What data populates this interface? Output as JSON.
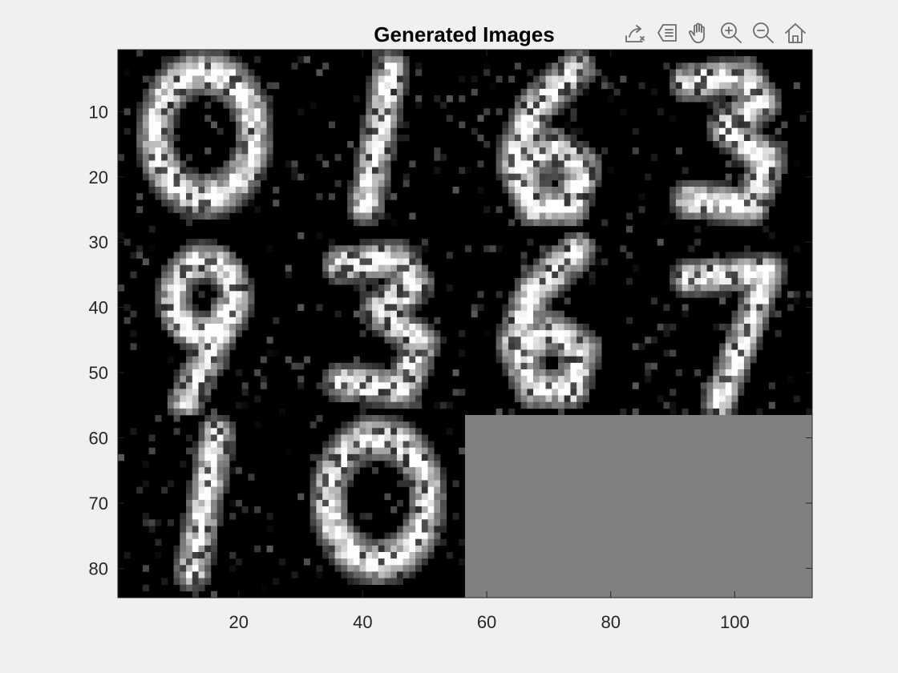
{
  "chart_data": {
    "type": "heatmap",
    "title": "Generated Images",
    "xlabel": "",
    "ylabel": "",
    "colormap": "gray",
    "background_fill_color": "#808080",
    "x_range": [
      0.5,
      112.5
    ],
    "y_range": [
      0.5,
      84.5
    ],
    "y_direction": "reverse",
    "xticks": [
      20,
      40,
      60,
      80,
      100
    ],
    "yticks": [
      10,
      20,
      30,
      40,
      50,
      60,
      70,
      80
    ],
    "xtick_labels": [
      "20",
      "40",
      "60",
      "80",
      "100"
    ],
    "ytick_labels": [
      "10",
      "20",
      "30",
      "40",
      "50",
      "60",
      "70",
      "80"
    ],
    "grid": false,
    "montage": {
      "tile_size": 28,
      "grid_rows": 3,
      "grid_cols": 4,
      "tiles": [
        {
          "row": 0,
          "col": 0,
          "digit": "0"
        },
        {
          "row": 0,
          "col": 1,
          "digit": "1"
        },
        {
          "row": 0,
          "col": 2,
          "digit": "6"
        },
        {
          "row": 0,
          "col": 3,
          "digit": "3"
        },
        {
          "row": 1,
          "col": 0,
          "digit": "9"
        },
        {
          "row": 1,
          "col": 1,
          "digit": "3"
        },
        {
          "row": 1,
          "col": 2,
          "digit": "6"
        },
        {
          "row": 1,
          "col": 3,
          "digit": "7"
        },
        {
          "row": 2,
          "col": 0,
          "digit": "1"
        },
        {
          "row": 2,
          "col": 1,
          "digit": "0"
        }
      ],
      "empty_region_x": [
        56.5,
        112.5
      ],
      "empty_region_y": [
        56.5,
        84.5
      ],
      "empty_region_value": 0.5
    }
  },
  "toolbar": {
    "items": [
      {
        "name": "export-icon"
      },
      {
        "name": "data-tips-icon"
      },
      {
        "name": "pan-hand-icon"
      },
      {
        "name": "zoom-in-icon"
      },
      {
        "name": "zoom-out-icon"
      },
      {
        "name": "home-icon"
      }
    ]
  }
}
